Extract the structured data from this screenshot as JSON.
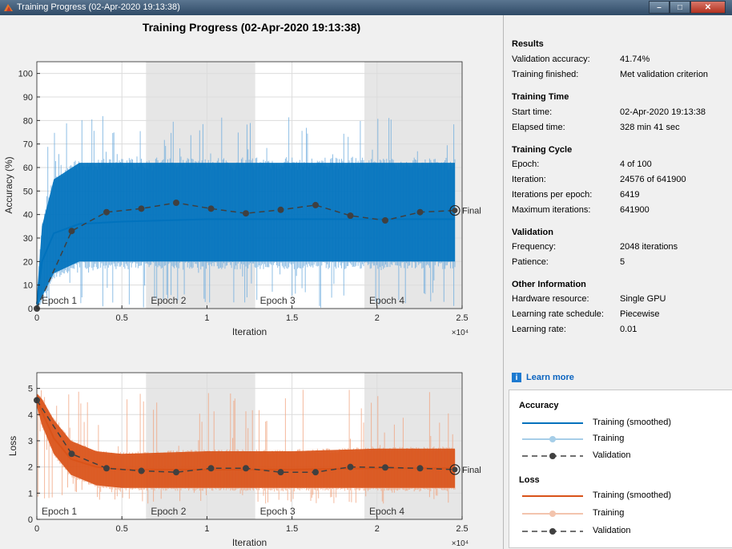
{
  "window": {
    "title": "Training Progress (02-Apr-2020 19:13:38)"
  },
  "main_title": "Training Progress (02-Apr-2020 19:13:38)",
  "colors": {
    "training_accuracy": "#0072BD",
    "training_loss": "#D95319",
    "validation": "#404040",
    "epoch_shade": "#e6e6e6"
  },
  "chart_data": [
    {
      "type": "line",
      "xlabel": "Iteration",
      "ylabel": "Accuracy (%)",
      "x_multiplier": "×10⁴",
      "xlim": [
        0,
        2.5
      ],
      "ylim": [
        0,
        105
      ],
      "xticks": [
        "0",
        "0.5",
        "1",
        "1.5",
        "2",
        "2.5"
      ],
      "yticks": [
        "0",
        "10",
        "20",
        "30",
        "40",
        "50",
        "60",
        "70",
        "80",
        "90",
        "100"
      ],
      "grid": true,
      "epoch_labels": [
        "Epoch 1",
        "Epoch 2",
        "Epoch 3",
        "Epoch 4"
      ],
      "shaded_epochs": [
        2,
        4
      ],
      "epoch_bounds": [
        0,
        0.6419,
        1.2838,
        1.9257,
        2.4576
      ],
      "final_label": "Final",
      "series": [
        {
          "kind": "smoothed_band",
          "x": [
            0,
            0.03,
            0.1,
            0.25,
            0.5,
            1.0,
            1.5,
            2.0,
            2.4576
          ],
          "lower": [
            0,
            5,
            15,
            20,
            20,
            20,
            20,
            20,
            20
          ],
          "upper": [
            5,
            35,
            55,
            62,
            62,
            62,
            62,
            62,
            62
          ],
          "mid": [
            2,
            20,
            32,
            36,
            37,
            38,
            38,
            38,
            38
          ]
        },
        {
          "kind": "training_spikes",
          "min": 0,
          "max": 82
        },
        {
          "kind": "validation",
          "x": [
            0,
            0.2048,
            0.4096,
            0.6144,
            0.8192,
            1.024,
            1.2288,
            1.4336,
            1.6384,
            1.8432,
            2.048,
            2.2528,
            2.4576
          ],
          "values": [
            0,
            33,
            41,
            42.5,
            45,
            42.5,
            40.5,
            42,
            44,
            39.5,
            37.5,
            41,
            41.74
          ]
        }
      ]
    },
    {
      "type": "line",
      "xlabel": "Iteration",
      "ylabel": "Loss",
      "x_multiplier": "×10⁴",
      "xlim": [
        0,
        2.5
      ],
      "ylim": [
        0,
        5.6
      ],
      "xticks": [
        "0",
        "0.5",
        "1",
        "1.5",
        "2",
        "2.5"
      ],
      "yticks": [
        "0",
        "1",
        "2",
        "3",
        "4",
        "5"
      ],
      "grid": true,
      "epoch_labels": [
        "Epoch 1",
        "Epoch 2",
        "Epoch 3",
        "Epoch 4"
      ],
      "shaded_epochs": [
        2,
        4
      ],
      "epoch_bounds": [
        0,
        0.6419,
        1.2838,
        1.9257,
        2.4576
      ],
      "final_label": "Final",
      "series": [
        {
          "kind": "smoothed_band",
          "x": [
            0,
            0.03,
            0.1,
            0.2,
            0.35,
            0.5,
            1.0,
            1.5,
            2.0,
            2.4576
          ],
          "lower": [
            4.3,
            3.6,
            2.5,
            1.7,
            1.3,
            1.2,
            1.2,
            1.2,
            1.2,
            1.2
          ],
          "upper": [
            4.8,
            4.6,
            3.8,
            3.0,
            2.6,
            2.5,
            2.6,
            2.6,
            2.7,
            2.7
          ],
          "mid": [
            4.6,
            4.1,
            3.1,
            2.3,
            2.0,
            1.9,
            1.9,
            1.9,
            1.95,
            1.95
          ]
        },
        {
          "kind": "training_spikes",
          "min": 0.6,
          "max": 5.0
        },
        {
          "kind": "validation",
          "x": [
            0,
            0.2048,
            0.4096,
            0.6144,
            0.8192,
            1.024,
            1.2288,
            1.4336,
            1.6384,
            1.8432,
            2.048,
            2.2528,
            2.4576
          ],
          "values": [
            4.55,
            2.5,
            1.95,
            1.85,
            1.8,
            1.95,
            1.95,
            1.8,
            1.8,
            2.0,
            1.98,
            1.95,
            1.9
          ]
        }
      ]
    }
  ],
  "sidebar": {
    "results": {
      "title": "Results",
      "rows": [
        {
          "key": "Validation accuracy:",
          "value": "41.74%"
        },
        {
          "key": "Training finished:",
          "value": "Met validation criterion"
        }
      ]
    },
    "time": {
      "title": "Training Time",
      "rows": [
        {
          "key": "Start time:",
          "value": "02-Apr-2020 19:13:38"
        },
        {
          "key": "Elapsed time:",
          "value": "328 min 41 sec"
        }
      ]
    },
    "cycle": {
      "title": "Training Cycle",
      "rows": [
        {
          "key": "Epoch:",
          "value": "4 of 100"
        },
        {
          "key": "Iteration:",
          "value": "24576 of 641900"
        },
        {
          "key": "Iterations per epoch:",
          "value": "6419"
        },
        {
          "key": "Maximum iterations:",
          "value": "641900"
        }
      ]
    },
    "validation": {
      "title": "Validation",
      "rows": [
        {
          "key": "Frequency:",
          "value": "2048 iterations"
        },
        {
          "key": "Patience:",
          "value": "5"
        }
      ]
    },
    "other": {
      "title": "Other Information",
      "rows": [
        {
          "key": "Hardware resource:",
          "value": "Single GPU"
        },
        {
          "key": "Learning rate schedule:",
          "value": "Piecewise"
        },
        {
          "key": "Learning rate:",
          "value": "0.01"
        }
      ]
    },
    "learn_more": "Learn more",
    "info_icon": "info-icon"
  },
  "legend": {
    "accuracy_title": "Accuracy",
    "loss_title": "Loss",
    "training_smoothed": "Training (smoothed)",
    "training": "Training",
    "validation": "Validation"
  }
}
